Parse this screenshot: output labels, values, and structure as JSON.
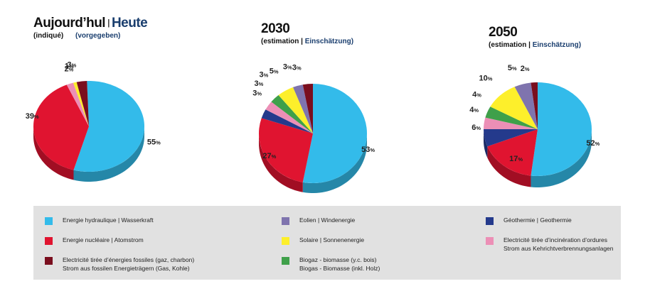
{
  "titles": [
    {
      "fr": "Aujourd’hul",
      "sep": "|",
      "de": "Heute",
      "sub_fr": "(indiqué)",
      "sub_de": "(vorgegeben)"
    },
    {
      "main": "2030",
      "sub_fr": "(estimation |",
      "sub_de": "Einschätzung)"
    },
    {
      "main": "2050",
      "sub_fr": "(estimation |",
      "sub_de": "Einschätzung)"
    }
  ],
  "colors": {
    "hydro": "#33bbea",
    "nuclear": "#e01430",
    "fossil": "#7a0e1e",
    "solar": "#fdef2b",
    "wind": "#7f74ae",
    "biogas": "#3fa04a",
    "geothermal": "#243a8c",
    "incineration": "#ec8fb6"
  },
  "legend": [
    {
      "key": "hydro",
      "label": "Energie hydraulique | Wasserkraft"
    },
    {
      "key": "nuclear",
      "label": "Energie nucléaire | Atomstrom"
    },
    {
      "key": "fossil",
      "label": "Electricité tirée d’énergies fossiles (gaz, charbon)\nStrom aus fossilen Energieträgern (Gas, Kohle)"
    },
    {
      "key": "wind",
      "label": "Eolien | Windenergie"
    },
    {
      "key": "solar",
      "label": "Solaire | Sonnenenergie"
    },
    {
      "key": "biogas",
      "label": "Biogaz - biomasse (y.c. bois)\nBiogas - Biomasse (inkl. Holz)"
    },
    {
      "key": "geothermal",
      "label": "Géothermie | Geothermie"
    },
    {
      "key": "incineration",
      "label": "Electricité tirée d’incinération d’ordures\nStrom aus Kehrichtverbrennungsanlagen"
    }
  ],
  "chart_data": [
    {
      "type": "pie",
      "title": "Aujourd’hul | Heute",
      "subtitle": "(indiqué) (vorgegeben)",
      "slices": [
        {
          "key": "hydro",
          "value": 55,
          "label": "55%"
        },
        {
          "key": "nuclear",
          "value": 39,
          "label": "39%"
        },
        {
          "key": "incineration",
          "value": 2,
          "label": "2%"
        },
        {
          "key": "solar",
          "value": 1,
          "label": "1%"
        },
        {
          "key": "fossil",
          "value": 3,
          "label": "3%"
        }
      ]
    },
    {
      "type": "pie",
      "title": "2030",
      "subtitle": "(estimation | Einschätzung)",
      "slices": [
        {
          "key": "hydro",
          "value": 53,
          "label": "53%"
        },
        {
          "key": "nuclear",
          "value": 27,
          "label": "27%"
        },
        {
          "key": "geothermal",
          "value": 3,
          "label": "3%"
        },
        {
          "key": "incineration",
          "value": 3,
          "label": "3%"
        },
        {
          "key": "biogas",
          "value": 3,
          "label": "3%"
        },
        {
          "key": "solar",
          "value": 5,
          "label": "5%"
        },
        {
          "key": "wind",
          "value": 3,
          "label": "3%"
        },
        {
          "key": "fossil",
          "value": 3,
          "label": "3%"
        }
      ]
    },
    {
      "type": "pie",
      "title": "2050",
      "subtitle": "(estimation | Einschätzung)",
      "slices": [
        {
          "key": "hydro",
          "value": 52,
          "label": "52%"
        },
        {
          "key": "nuclear",
          "value": 17,
          "label": "17%"
        },
        {
          "key": "geothermal",
          "value": 6,
          "label": "6%"
        },
        {
          "key": "incineration",
          "value": 4,
          "label": "4%"
        },
        {
          "key": "biogas",
          "value": 4,
          "label": "4%"
        },
        {
          "key": "solar",
          "value": 10,
          "label": "10%"
        },
        {
          "key": "wind",
          "value": 5,
          "label": "5%"
        },
        {
          "key": "fossil",
          "value": 2,
          "label": "2%"
        }
      ]
    }
  ]
}
